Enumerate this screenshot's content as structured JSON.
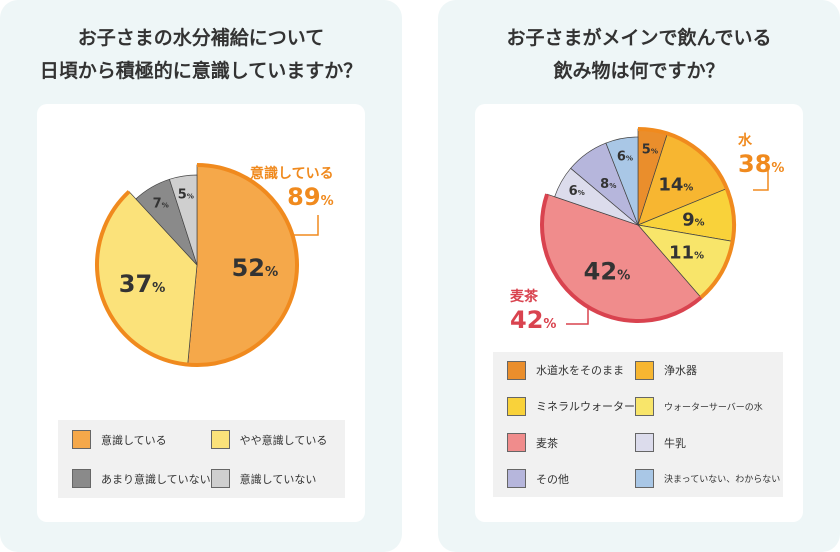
{
  "chart_data": [
    {
      "type": "pie",
      "title": "お子さまの水分補給について\n日頃から積極的に意識していますか？",
      "categories": [
        "意識している",
        "やや意識している",
        "あまり意識していない",
        "意識していない"
      ],
      "values": [
        52,
        37,
        7,
        5
      ],
      "colors": [
        "#f5a84a",
        "#fbe27a",
        "#8a8a8a",
        "#cfcfcf"
      ],
      "highlight": {
        "label": "意識している",
        "value": "89",
        "unit": "%",
        "includes": [
          "意識している",
          "やや意識している"
        ],
        "color": "#f08a1e"
      },
      "legend": "bottom"
    },
    {
      "type": "pie",
      "title": "お子さまがメインで飲んでいる\n飲み物は何ですか？",
      "categories": [
        "水道水をそのまま",
        "浄水器",
        "ミネラルウォーター",
        "ウォーターサーバーの水",
        "麦茶",
        "牛乳",
        "その他",
        "決まっていない、わからない"
      ],
      "values": [
        5,
        14,
        9,
        11,
        42,
        6,
        8,
        6
      ],
      "colors": [
        "#ea8e2c",
        "#f7b631",
        "#f9d23a",
        "#f8e56a",
        "#f08c8c",
        "#dcdcec",
        "#b6b6dc",
        "#a9c7e6"
      ],
      "highlights": [
        {
          "label": "水",
          "value": "38",
          "unit": "%",
          "color": "#f08a1e"
        },
        {
          "label": "麦茶",
          "value": "42",
          "unit": "%",
          "color": "#d9434f"
        }
      ],
      "legend": "bottom"
    }
  ]
}
